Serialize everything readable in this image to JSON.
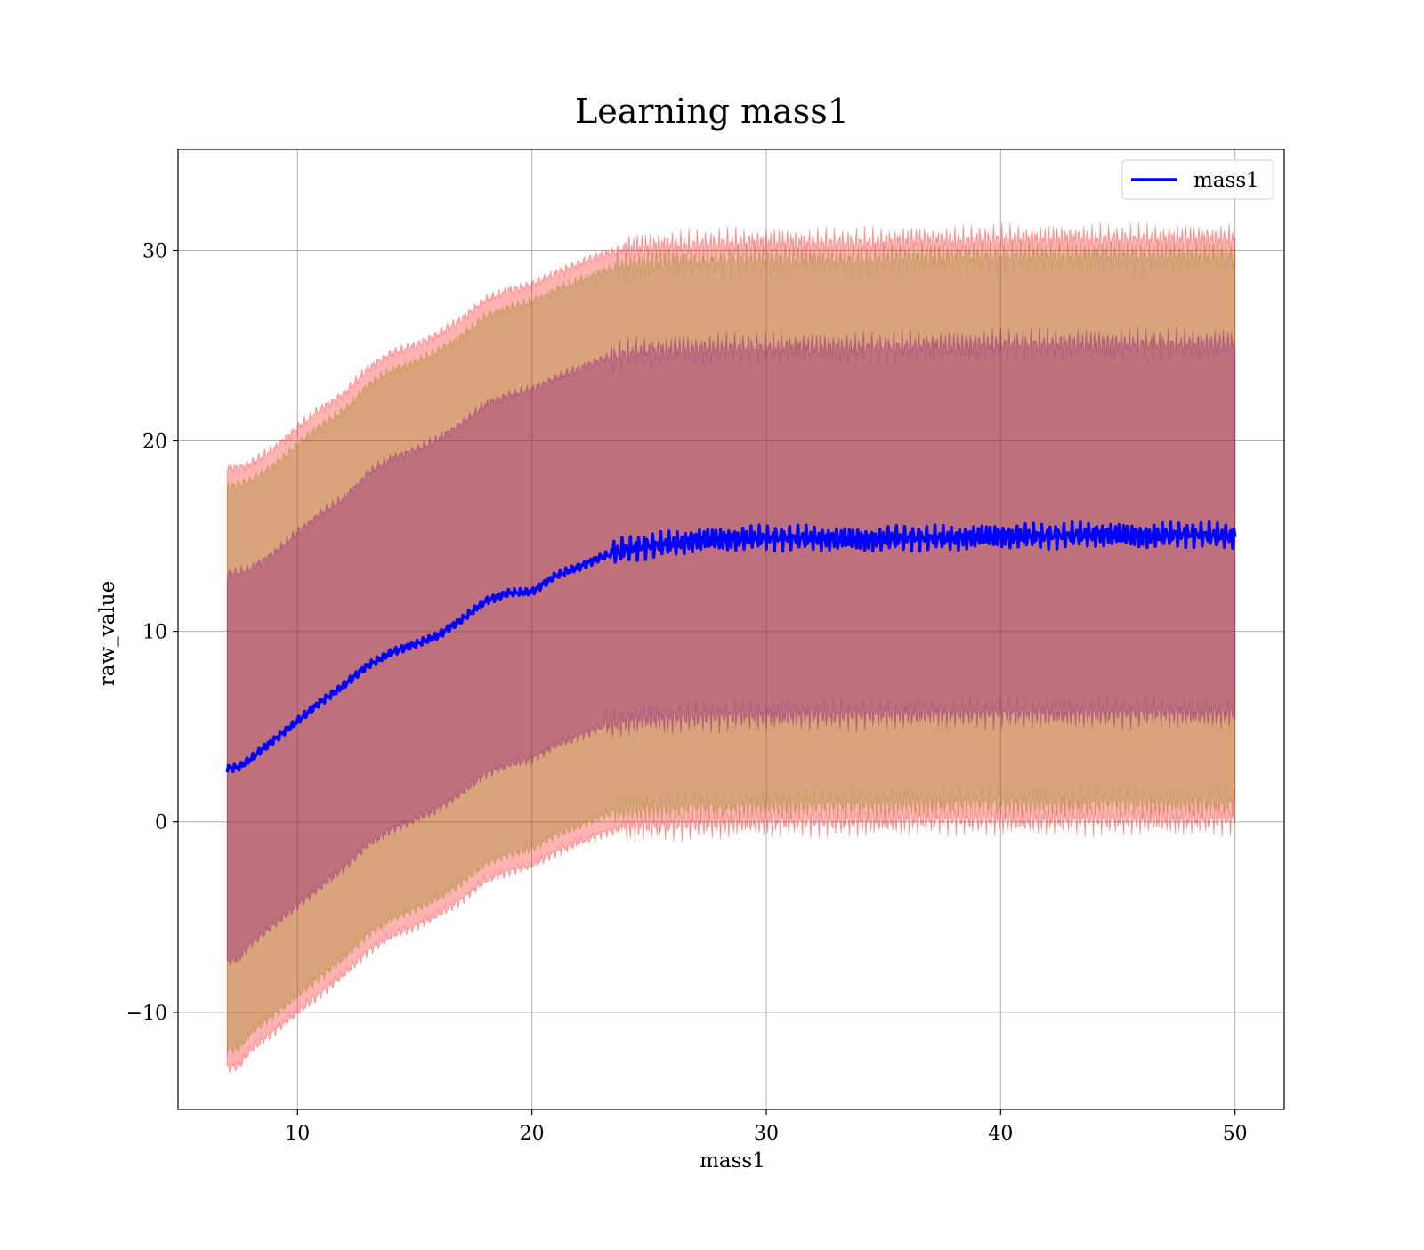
{
  "chart_data": {
    "type": "line",
    "title": "Learning mass1",
    "xlabel": "mass1",
    "ylabel": "raw_value",
    "xlim": [
      4.9,
      52.1
    ],
    "ylim": [
      -15.1,
      35.3
    ],
    "x_ticks": [
      10,
      20,
      30,
      40,
      50
    ],
    "x_tick_labels": [
      "10",
      "20",
      "30",
      "40",
      "50"
    ],
    "y_ticks": [
      -10,
      0,
      10,
      20,
      30
    ],
    "y_tick_labels": [
      "−10",
      "0",
      "10",
      "20",
      "30"
    ],
    "grid": true,
    "legend": {
      "placement": "top-right",
      "entries": [
        "mass1"
      ]
    },
    "series": [
      {
        "name": "mass1",
        "kind": "line",
        "color": "#0000ff",
        "x": [
          7,
          7.5,
          8,
          9,
          10,
          11,
          12,
          13,
          14,
          15,
          16,
          17,
          18,
          19,
          20,
          21,
          22,
          23,
          24,
          25,
          26,
          27,
          28,
          29,
          30,
          32,
          34,
          36,
          38,
          40,
          42,
          44,
          46,
          48,
          50
        ],
        "y": [
          2.8,
          2.9,
          3.3,
          4.3,
          5.3,
          6.3,
          7.2,
          8.2,
          8.9,
          9.3,
          9.8,
          10.6,
          11.6,
          12.0,
          12.1,
          12.9,
          13.4,
          13.9,
          14.3,
          14.5,
          14.6,
          14.8,
          14.8,
          14.9,
          14.9,
          14.9,
          14.8,
          14.9,
          14.9,
          15.0,
          15.0,
          15.1,
          15.0,
          15.1,
          15.0
        ]
      }
    ],
    "bands": [
      {
        "color": "#ff0000",
        "x": [
          7,
          7.5,
          8,
          9,
          10,
          11,
          12,
          13,
          14,
          15,
          16,
          17,
          18,
          19,
          20,
          21,
          22,
          23,
          24,
          25,
          26,
          27,
          28,
          29,
          30,
          32,
          34,
          36,
          38,
          40,
          42,
          44,
          46,
          48,
          50
        ],
        "lower": [
          -12.9,
          -12.8,
          -12.0,
          -11.0,
          -10.0,
          -9.0,
          -8.0,
          -6.8,
          -6.0,
          -5.5,
          -4.9,
          -4.1,
          -3.1,
          -2.6,
          -2.3,
          -1.6,
          -1.1,
          -0.6,
          -0.3,
          -0.2,
          -0.2,
          -0.1,
          -0.1,
          0.0,
          0.0,
          0.0,
          0.0,
          0.1,
          0.1,
          0.1,
          0.1,
          0.1,
          0.1,
          0.1,
          0.1
        ],
        "upper": [
          18.6,
          18.6,
          18.8,
          19.6,
          20.7,
          21.7,
          22.5,
          23.8,
          24.6,
          25.0,
          25.6,
          26.4,
          27.4,
          27.9,
          28.2,
          28.8,
          29.3,
          29.8,
          30.1,
          30.2,
          30.3,
          30.3,
          30.4,
          30.4,
          30.4,
          30.4,
          30.4,
          30.5,
          30.5,
          30.6,
          30.6,
          30.6,
          30.6,
          30.6,
          30.6
        ]
      },
      {
        "color": "#808000",
        "x": [
          7,
          7.5,
          8,
          9,
          10,
          11,
          12,
          13,
          14,
          15,
          16,
          17,
          18,
          19,
          20,
          21,
          22,
          23,
          24,
          25,
          26,
          27,
          28,
          29,
          30,
          32,
          34,
          36,
          38,
          40,
          42,
          44,
          46,
          48,
          50
        ],
        "lower": [
          -12.0,
          -11.9,
          -11.1,
          -10.1,
          -9.1,
          -8.1,
          -7.1,
          -5.9,
          -5.1,
          -4.6,
          -4.0,
          -3.2,
          -2.2,
          -1.7,
          -1.4,
          -0.7,
          -0.2,
          0.3,
          0.6,
          0.7,
          0.7,
          0.8,
          0.8,
          0.9,
          0.9,
          0.9,
          0.9,
          1.0,
          1.0,
          1.0,
          1.0,
          1.0,
          1.0,
          1.0,
          1.0
        ],
        "upper": [
          17.6,
          17.7,
          17.9,
          18.7,
          19.8,
          20.8,
          21.6,
          22.9,
          23.7,
          24.1,
          24.7,
          25.5,
          26.5,
          27.0,
          27.3,
          27.9,
          28.4,
          28.9,
          29.2,
          29.3,
          29.4,
          29.4,
          29.5,
          29.5,
          29.5,
          29.5,
          29.5,
          29.6,
          29.6,
          29.7,
          29.7,
          29.7,
          29.7,
          29.7,
          29.7
        ]
      },
      {
        "color": "#800080",
        "x": [
          7,
          7.5,
          8,
          9,
          10,
          11,
          12,
          13,
          14,
          15,
          16,
          17,
          18,
          19,
          20,
          21,
          22,
          23,
          24,
          25,
          26,
          27,
          28,
          29,
          30,
          32,
          34,
          36,
          38,
          40,
          42,
          44,
          46,
          48,
          50
        ],
        "lower": [
          -7.3,
          -7.2,
          -6.4,
          -5.4,
          -4.4,
          -3.4,
          -2.4,
          -1.2,
          -0.4,
          0.1,
          0.7,
          1.5,
          2.5,
          3.0,
          3.3,
          4.0,
          4.5,
          5.0,
          5.3,
          5.4,
          5.4,
          5.5,
          5.5,
          5.6,
          5.6,
          5.6,
          5.6,
          5.7,
          5.7,
          5.7,
          5.7,
          5.7,
          5.7,
          5.7,
          5.7
        ],
        "upper": [
          13.0,
          13.1,
          13.3,
          14.1,
          15.2,
          16.2,
          17.0,
          18.3,
          19.1,
          19.5,
          20.1,
          20.9,
          21.9,
          22.4,
          22.7,
          23.3,
          23.8,
          24.3,
          24.6,
          24.7,
          24.8,
          24.8,
          24.9,
          24.9,
          24.9,
          24.9,
          24.9,
          25.0,
          25.0,
          25.1,
          25.1,
          25.1,
          25.1,
          25.1,
          25.1
        ]
      }
    ]
  }
}
